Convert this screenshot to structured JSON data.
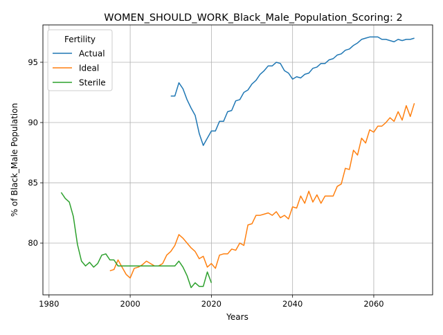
{
  "chart_data": {
    "type": "line",
    "title": "WOMEN_SHOULD_WORK_Black_Male_Population_Scoring: 2",
    "xlabel": "Years",
    "ylabel": "% of Black_Male Population",
    "xlim": [
      1978.5,
      2074.5
    ],
    "ylim": [
      75.7,
      98.1
    ],
    "x_ticks": [
      1980,
      2000,
      2020,
      2040,
      2060
    ],
    "y_ticks": [
      80,
      85,
      90,
      95
    ],
    "grid": true,
    "legend": {
      "title": "Fertility",
      "placement": "upper left"
    },
    "series": [
      {
        "name": "Actual",
        "color": "#1f77b4",
        "x": [
          2010,
          2011,
          2012,
          2013,
          2014,
          2015,
          2016,
          2017,
          2018,
          2019,
          2020,
          2021,
          2022,
          2023,
          2024,
          2025,
          2026,
          2027,
          2028,
          2029,
          2030,
          2031,
          2032,
          2033,
          2034,
          2035,
          2036,
          2037,
          2038,
          2039,
          2040,
          2041,
          2042,
          2043,
          2044,
          2045,
          2046,
          2047,
          2048,
          2049,
          2050,
          2051,
          2052,
          2053,
          2054,
          2055,
          2056,
          2057,
          2058,
          2059,
          2060,
          2061,
          2062,
          2063,
          2064,
          2065,
          2066,
          2067,
          2068,
          2069,
          2070
        ],
        "y": [
          92.2,
          92.2,
          93.3,
          92.8,
          91.9,
          91.2,
          90.6,
          89.1,
          88.1,
          88.7,
          89.3,
          89.3,
          90.1,
          90.1,
          90.9,
          91.0,
          91.8,
          91.9,
          92.5,
          92.7,
          93.2,
          93.5,
          94.0,
          94.3,
          94.7,
          94.7,
          95.0,
          94.9,
          94.3,
          94.1,
          93.6,
          93.8,
          93.7,
          94.0,
          94.1,
          94.5,
          94.6,
          94.9,
          94.9,
          95.2,
          95.3,
          95.6,
          95.7,
          96.0,
          96.1,
          96.4,
          96.6,
          96.9,
          97.0,
          97.1,
          97.1,
          97.1,
          96.9,
          96.9,
          96.8,
          96.7,
          96.9,
          96.8,
          96.9,
          96.9,
          97.0
        ]
      },
      {
        "name": "Ideal",
        "color": "#ff7f0e",
        "x": [
          1995,
          1996,
          1997,
          1998,
          1999,
          2000,
          2001,
          2002,
          2003,
          2004,
          2005,
          2006,
          2007,
          2008,
          2009,
          2010,
          2011,
          2012,
          2013,
          2014,
          2015,
          2016,
          2017,
          2018,
          2019,
          2020,
          2021,
          2022,
          2023,
          2024,
          2025,
          2026,
          2027,
          2028,
          2029,
          2030,
          2031,
          2032,
          2033,
          2034,
          2035,
          2036,
          2037,
          2038,
          2039,
          2040,
          2041,
          2042,
          2043,
          2044,
          2045,
          2046,
          2047,
          2048,
          2049,
          2050,
          2051,
          2052,
          2053,
          2054,
          2055,
          2056,
          2057,
          2058,
          2059,
          2060,
          2061,
          2062,
          2063,
          2064,
          2065,
          2066,
          2067,
          2068,
          2069,
          2070
        ],
        "y": [
          77.7,
          77.8,
          78.6,
          78.0,
          77.4,
          77.1,
          77.9,
          78.0,
          78.2,
          78.5,
          78.3,
          78.1,
          78.1,
          78.3,
          79.0,
          79.3,
          79.8,
          80.7,
          80.4,
          80.0,
          79.6,
          79.3,
          78.7,
          78.9,
          78.0,
          78.3,
          77.9,
          79.0,
          79.1,
          79.1,
          79.5,
          79.4,
          80.0,
          79.8,
          81.5,
          81.6,
          82.3,
          82.3,
          82.4,
          82.5,
          82.3,
          82.6,
          82.1,
          82.3,
          82.0,
          83.0,
          82.9,
          83.9,
          83.3,
          84.3,
          83.4,
          84.0,
          83.3,
          83.9,
          83.9,
          83.9,
          84.7,
          84.9,
          86.2,
          86.1,
          87.7,
          87.3,
          88.7,
          88.3,
          89.4,
          89.2,
          89.7,
          89.7,
          90.0,
          90.4,
          90.1,
          90.9,
          90.2,
          91.4,
          90.5,
          91.6
        ]
      },
      {
        "name": "Sterile",
        "color": "#2ca02c",
        "x": [
          1983,
          1984,
          1985,
          1986,
          1987,
          1988,
          1989,
          1990,
          1991,
          1992,
          1993,
          1994,
          1995,
          1996,
          1997,
          1998,
          1999,
          2000,
          2001,
          2002,
          2003,
          2004,
          2005,
          2006,
          2007,
          2008,
          2009,
          2010,
          2011,
          2012,
          2013,
          2014,
          2015,
          2016,
          2017,
          2018,
          2019,
          2020
        ],
        "y": [
          84.2,
          83.7,
          83.4,
          82.2,
          79.9,
          78.5,
          78.1,
          78.4,
          78.0,
          78.3,
          79.0,
          79.1,
          78.6,
          78.6,
          78.1,
          78.1,
          78.1,
          78.1,
          78.1,
          78.1,
          78.1,
          78.1,
          78.1,
          78.1,
          78.1,
          78.1,
          78.1,
          78.1,
          78.1,
          78.5,
          78.0,
          77.3,
          76.3,
          76.7,
          76.4,
          76.4,
          77.6,
          76.7
        ]
      }
    ]
  }
}
